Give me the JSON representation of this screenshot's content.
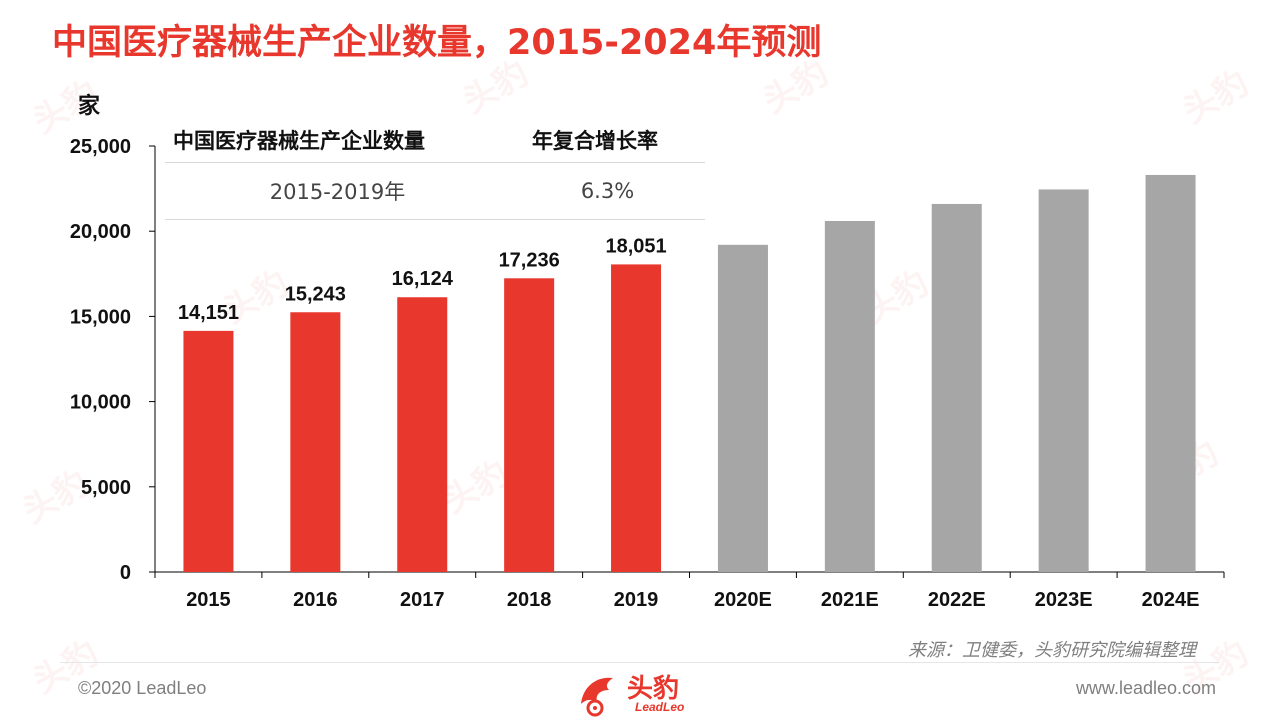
{
  "title": "中国医疗器械生产企业数量，2015-2024年预测",
  "unit_label": "家",
  "cagr_table": {
    "header_col1": "中国医疗器械生产企业数量",
    "header_col2": "年复合增长率",
    "period": "2015-2019年",
    "rate": "6.3%"
  },
  "source": "来源：卫健委，头豹研究院编辑整理",
  "footer": {
    "copyright": "©2020 LeadLeo",
    "website": "www.leadleo.com",
    "logo_text": "头豹",
    "logo_sub": "LeadLeo"
  },
  "colors": {
    "accent": "#e8372c",
    "actual_bar": "#e8372c",
    "forecast_bar": "#a6a6a6"
  },
  "chart_data": {
    "type": "bar",
    "categories": [
      "2015",
      "2016",
      "2017",
      "2018",
      "2019",
      "2020E",
      "2021E",
      "2022E",
      "2023E",
      "2024E"
    ],
    "values": [
      14151,
      15243,
      16124,
      17236,
      18051,
      19200,
      20600,
      21600,
      22450,
      23300
    ],
    "data_labels": [
      "14,151",
      "15,243",
      "16,124",
      "17,236",
      "18,051",
      "",
      "",
      "",
      "",
      ""
    ],
    "forecast": [
      false,
      false,
      false,
      false,
      false,
      true,
      true,
      true,
      true,
      true
    ],
    "ylabel": "家",
    "ylim": [
      0,
      25000
    ],
    "yticks": [
      0,
      5000,
      10000,
      15000,
      20000,
      25000
    ],
    "ytick_labels": [
      "0",
      "5,000",
      "10,000",
      "15,000",
      "20,000",
      "25,000"
    ],
    "grid": false
  }
}
